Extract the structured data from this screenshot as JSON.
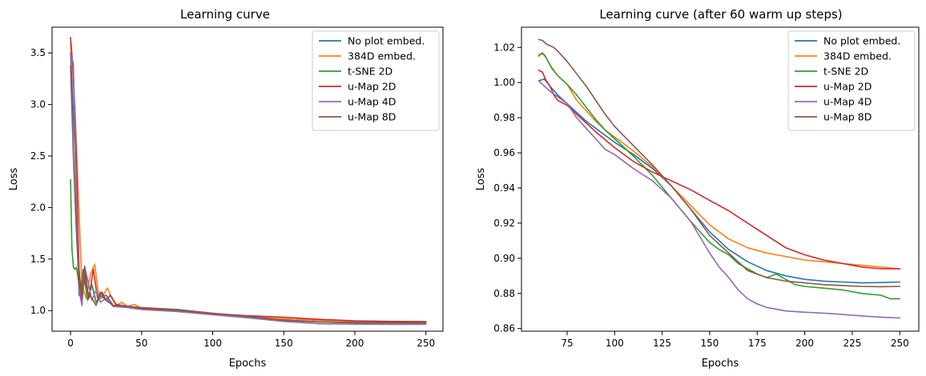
{
  "chart_data": [
    {
      "type": "line",
      "title": "Learning curve",
      "xlabel": "Epochs",
      "ylabel": "Loss",
      "xlim": [
        -13,
        262
      ],
      "ylim": [
        0.8,
        3.75
      ],
      "xticks": [
        0,
        50,
        100,
        150,
        200,
        250
      ],
      "yticks": [
        1.0,
        1.5,
        2.0,
        2.5,
        3.0,
        3.5
      ],
      "ytick_labels": [
        "1.0",
        "1.5",
        "2.0",
        "2.5",
        "3.0",
        "3.5"
      ],
      "legend": "top-right",
      "grid": false,
      "series": [
        {
          "name": "No plot embed.",
          "color": "#1f77b4",
          "x": [
            0,
            3,
            6,
            9,
            12,
            15,
            18,
            21,
            25,
            30,
            40,
            50,
            75,
            100,
            125,
            150,
            175,
            200,
            225,
            250
          ],
          "y": [
            3.5,
            2.6,
            1.15,
            1.4,
            1.1,
            1.25,
            1.08,
            1.12,
            1.15,
            1.05,
            1.04,
            1.02,
            1.0,
            0.97,
            0.94,
            0.91,
            0.89,
            0.885,
            0.885,
            0.886
          ]
        },
        {
          "name": "384D embed.",
          "color": "#ff7f0e",
          "x": [
            0,
            3,
            5,
            8,
            11,
            14,
            17,
            20,
            23,
            26,
            29,
            32,
            36,
            40,
            45,
            50,
            75,
            100,
            125,
            150,
            175,
            200,
            225,
            250
          ],
          "y": [
            3.6,
            3.0,
            2.3,
            1.25,
            1.12,
            1.35,
            1.45,
            1.12,
            1.15,
            1.22,
            1.12,
            1.05,
            1.08,
            1.04,
            1.06,
            1.02,
            1.01,
            0.97,
            0.94,
            0.92,
            0.905,
            0.898,
            0.895,
            0.893
          ]
        },
        {
          "name": "t-SNE 2D",
          "color": "#2ca02c",
          "x": [
            0,
            1,
            2,
            3,
            4,
            5,
            7,
            9,
            12,
            15,
            18,
            21,
            25,
            30,
            40,
            50,
            75,
            100,
            125,
            150,
            175,
            200,
            225,
            250
          ],
          "y": [
            2.27,
            1.6,
            1.42,
            1.4,
            1.42,
            1.35,
            1.12,
            1.38,
            1.1,
            1.25,
            1.08,
            1.15,
            1.1,
            1.05,
            1.04,
            1.02,
            1.0,
            0.97,
            0.94,
            0.905,
            0.89,
            0.88,
            0.878,
            0.877
          ]
        },
        {
          "name": "u-Map 2D",
          "color": "#d62728",
          "x": [
            0,
            2,
            4,
            6,
            8,
            10,
            13,
            16,
            19,
            22,
            25,
            28,
            32,
            36,
            42,
            50,
            75,
            100,
            125,
            150,
            175,
            200,
            225,
            250
          ],
          "y": [
            3.65,
            3.3,
            2.5,
            1.4,
            1.08,
            1.35,
            1.12,
            1.4,
            1.12,
            1.18,
            1.1,
            1.15,
            1.06,
            1.05,
            1.04,
            1.02,
            1.01,
            0.97,
            0.95,
            0.935,
            0.915,
            0.9,
            0.895,
            0.893
          ]
        },
        {
          "name": "u-Map 4D",
          "color": "#9467bd",
          "x": [
            0,
            2,
            4,
            6,
            8,
            10,
            12,
            15,
            18,
            21,
            25,
            30,
            40,
            50,
            75,
            100,
            125,
            150,
            175,
            200,
            225,
            250
          ],
          "y": [
            3.5,
            3.4,
            2.2,
            1.2,
            1.05,
            1.42,
            1.3,
            1.1,
            1.2,
            1.08,
            1.12,
            1.04,
            1.03,
            1.01,
            0.99,
            0.96,
            0.93,
            0.895,
            0.872,
            0.868,
            0.867,
            0.866
          ]
        },
        {
          "name": "u-Map 8D",
          "color": "#8c564b",
          "x": [
            0,
            2,
            4,
            6,
            8,
            10,
            12,
            15,
            18,
            21,
            25,
            30,
            40,
            50,
            75,
            100,
            125,
            150,
            175,
            200,
            225,
            250
          ],
          "y": [
            3.38,
            2.5,
            1.8,
            1.25,
            1.15,
            1.43,
            1.18,
            1.12,
            1.05,
            1.18,
            1.1,
            1.05,
            1.04,
            1.03,
            1.01,
            0.975,
            0.945,
            0.905,
            0.89,
            0.885,
            0.884,
            0.884
          ]
        }
      ]
    },
    {
      "type": "line",
      "title": "Learning curve (after 60 warm up steps)",
      "xlabel": "Epochs",
      "ylabel": "Loss",
      "xlim": [
        51,
        260
      ],
      "ylim": [
        0.8585,
        1.0315
      ],
      "xticks": [
        75,
        100,
        125,
        150,
        175,
        200,
        225,
        250
      ],
      "yticks": [
        0.86,
        0.88,
        0.9,
        0.92,
        0.94,
        0.96,
        0.98,
        1.0,
        1.02
      ],
      "ytick_labels": [
        "0.86",
        "0.88",
        "0.90",
        "0.92",
        "0.94",
        "0.96",
        "0.98",
        "1.00",
        "1.02"
      ],
      "legend": "top-right",
      "grid": false,
      "series": [
        {
          "name": "No plot embed.",
          "color": "#1f77b4",
          "x": [
            60,
            63,
            66,
            70,
            75,
            80,
            85,
            90,
            95,
            100,
            110,
            120,
            130,
            140,
            150,
            160,
            170,
            180,
            190,
            200,
            210,
            220,
            230,
            240,
            250
          ],
          "y": [
            1.001,
            1.002,
            0.998,
            0.993,
            0.988,
            0.983,
            0.978,
            0.974,
            0.97,
            0.966,
            0.959,
            0.951,
            0.941,
            0.928,
            0.915,
            0.905,
            0.898,
            0.893,
            0.89,
            0.888,
            0.887,
            0.8865,
            0.886,
            0.8862,
            0.8865
          ]
        },
        {
          "name": "384D embed.",
          "color": "#ff7f0e",
          "x": [
            60,
            63,
            66,
            70,
            75,
            80,
            85,
            90,
            95,
            100,
            110,
            120,
            130,
            140,
            150,
            160,
            170,
            180,
            190,
            200,
            210,
            220,
            230,
            240,
            250
          ],
          "y": [
            1.016,
            1.016,
            1.01,
            1.004,
            0.999,
            0.99,
            0.984,
            0.978,
            0.973,
            0.969,
            0.961,
            0.952,
            0.941,
            0.93,
            0.919,
            0.911,
            0.906,
            0.903,
            0.901,
            0.899,
            0.898,
            0.897,
            0.896,
            0.895,
            0.894
          ]
        },
        {
          "name": "t-SNE 2D",
          "color": "#2ca02c",
          "x": [
            60,
            62,
            64,
            67,
            70,
            75,
            80,
            85,
            90,
            95,
            100,
            110,
            120,
            130,
            140,
            150,
            155,
            160,
            165,
            170,
            175,
            180,
            185,
            190,
            195,
            200,
            210,
            220,
            230,
            240,
            245,
            250
          ],
          "y": [
            1.015,
            1.017,
            1.014,
            1.008,
            1.004,
            0.999,
            0.993,
            0.986,
            0.979,
            0.973,
            0.968,
            0.958,
            0.947,
            0.934,
            0.921,
            0.909,
            0.905,
            0.902,
            0.897,
            0.894,
            0.891,
            0.889,
            0.891,
            0.888,
            0.885,
            0.884,
            0.883,
            0.882,
            0.88,
            0.879,
            0.877,
            0.877
          ]
        },
        {
          "name": "u-Map 2D",
          "color": "#d62728",
          "x": [
            60,
            62,
            64,
            66,
            68,
            70,
            75,
            80,
            85,
            90,
            100,
            110,
            120,
            130,
            140,
            150,
            160,
            170,
            180,
            190,
            200,
            210,
            220,
            230,
            240,
            250
          ],
          "y": [
            1.007,
            1.006,
            1.001,
            0.998,
            0.993,
            0.99,
            0.987,
            0.982,
            0.977,
            0.972,
            0.963,
            0.955,
            0.949,
            0.944,
            0.939,
            0.933,
            0.927,
            0.92,
            0.913,
            0.906,
            0.902,
            0.899,
            0.897,
            0.895,
            0.894,
            0.894
          ]
        },
        {
          "name": "u-Map 4D",
          "color": "#9467bd",
          "x": [
            60,
            63,
            66,
            70,
            75,
            80,
            85,
            90,
            95,
            100,
            110,
            120,
            130,
            140,
            145,
            150,
            155,
            160,
            165,
            170,
            175,
            180,
            190,
            200,
            210,
            220,
            230,
            240,
            250
          ],
          "y": [
            1.001,
            0.998,
            0.995,
            0.992,
            0.988,
            0.98,
            0.974,
            0.968,
            0.962,
            0.959,
            0.951,
            0.944,
            0.934,
            0.921,
            0.912,
            0.903,
            0.895,
            0.889,
            0.882,
            0.877,
            0.874,
            0.872,
            0.87,
            0.8693,
            0.8688,
            0.868,
            0.8672,
            0.8665,
            0.866
          ]
        },
        {
          "name": "u-Map 8D",
          "color": "#8c564b",
          "x": [
            60,
            62,
            64,
            66,
            68,
            70,
            75,
            80,
            85,
            90,
            95,
            100,
            110,
            120,
            130,
            140,
            150,
            155,
            160,
            170,
            180,
            190,
            200,
            210,
            220,
            230,
            240,
            250
          ],
          "y": [
            1.0245,
            1.024,
            1.022,
            1.021,
            1.02,
            1.018,
            1.012,
            1.005,
            0.998,
            0.99,
            0.982,
            0.975,
            0.964,
            0.953,
            0.941,
            0.928,
            0.913,
            0.908,
            0.903,
            0.893,
            0.889,
            0.887,
            0.886,
            0.885,
            0.8845,
            0.884,
            0.8838,
            0.884
          ]
        }
      ]
    }
  ]
}
